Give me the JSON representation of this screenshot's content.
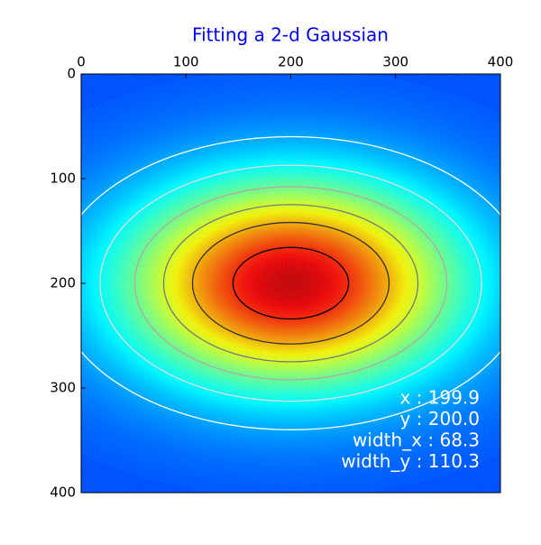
{
  "chart_data": {
    "type": "image",
    "title": "Fitting a 2-d Gaussian",
    "xlim": [
      0,
      400
    ],
    "ylim": [
      0,
      400
    ],
    "xticks": [
      0,
      100,
      200,
      300,
      400
    ],
    "yticks": [
      0,
      100,
      200,
      300,
      400
    ],
    "fit": {
      "values": [
        199.9,
        200.0,
        68.3,
        110.3
      ],
      "value_labels": [
        "x : 199.9",
        "y : 200.0",
        "width_x : 68.3",
        "width_y : 110.3"
      ]
    }
  }
}
